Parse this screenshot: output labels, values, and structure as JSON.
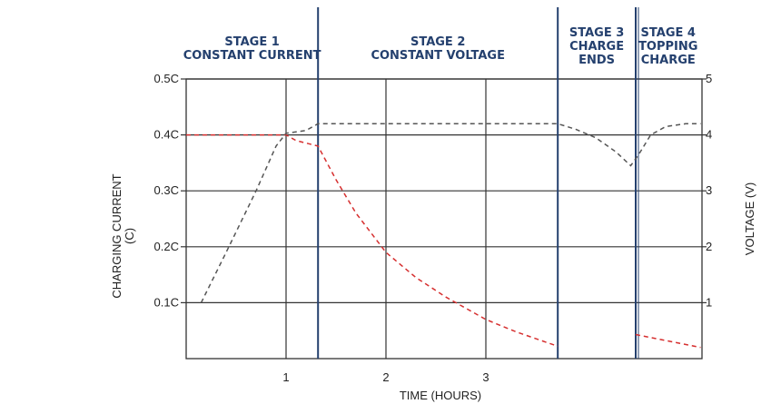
{
  "chart_data": {
    "type": "line",
    "xlabel": "TIME (HOURS)",
    "ylabel_left": [
      "CHARGING CURRENT",
      "(C)"
    ],
    "ylabel_right": "VOLTAGE (V)",
    "x_range": [
      0,
      5.15
    ],
    "x_ticks": [
      1,
      2,
      3
    ],
    "y_left_range": [
      0,
      0.5
    ],
    "y_left_ticks": [
      "0.1C",
      "0.2C",
      "0.3C",
      "0.4C",
      "0.5C"
    ],
    "y_left_tick_values": [
      0.1,
      0.2,
      0.3,
      0.4,
      0.5
    ],
    "y_right_range": [
      0,
      5
    ],
    "y_right_ticks": [
      "1",
      "2",
      "3",
      "4",
      "5"
    ],
    "y_right_tick_values": [
      1,
      2,
      3,
      4,
      5
    ],
    "grid": true,
    "stages": [
      {
        "lines": [
          "STAGE 1",
          "CONSTANT CURRENT"
        ],
        "x_start": 0,
        "x_end": 1.32
      },
      {
        "lines": [
          "STAGE 2",
          "CONSTANT VOLTAGE"
        ],
        "x_start": 1.32,
        "x_end": 3.72
      },
      {
        "lines": [
          "STAGE 3",
          "CHARGE",
          "ENDS"
        ],
        "x_start": 3.72,
        "x_end": 4.5
      },
      {
        "lines": [
          "STAGE 4",
          "TOPPING",
          "CHARGE"
        ],
        "x_start": 4.5,
        "x_end": 5.15
      }
    ],
    "stage_boundaries": [
      1.32,
      3.72,
      4.5
    ],
    "series": [
      {
        "axis": "left",
        "color": "#d62f2f",
        "style": "dashed",
        "segments": [
          [
            [
              0,
              0.4
            ],
            [
              1.0,
              0.4
            ],
            [
              1.1,
              0.39
            ],
            [
              1.32,
              0.38
            ],
            [
              1.5,
              0.32
            ],
            [
              1.7,
              0.26
            ],
            [
              2.0,
              0.19
            ],
            [
              2.3,
              0.145
            ],
            [
              2.6,
              0.11
            ],
            [
              3.0,
              0.07
            ],
            [
              3.3,
              0.048
            ],
            [
              3.72,
              0.022
            ]
          ],
          [
            [
              4.5,
              0.043
            ],
            [
              5.15,
              0.02
            ]
          ]
        ]
      },
      {
        "axis": "right",
        "color": "#555555",
        "style": "dashed",
        "segments": [
          [
            [
              0.15,
              1.0
            ],
            [
              0.4,
              1.9
            ],
            [
              0.7,
              3.0
            ],
            [
              0.9,
              3.8
            ],
            [
              1.0,
              4.03
            ],
            [
              1.2,
              4.08
            ],
            [
              1.32,
              4.2
            ],
            [
              3.72,
              4.2
            ],
            [
              3.9,
              4.1
            ],
            [
              4.1,
              3.95
            ],
            [
              4.3,
              3.7
            ],
            [
              4.45,
              3.45
            ],
            [
              4.53,
              3.65
            ],
            [
              4.65,
              4.0
            ],
            [
              4.8,
              4.15
            ],
            [
              5.0,
              4.2
            ],
            [
              5.15,
              4.2
            ]
          ]
        ]
      }
    ]
  }
}
